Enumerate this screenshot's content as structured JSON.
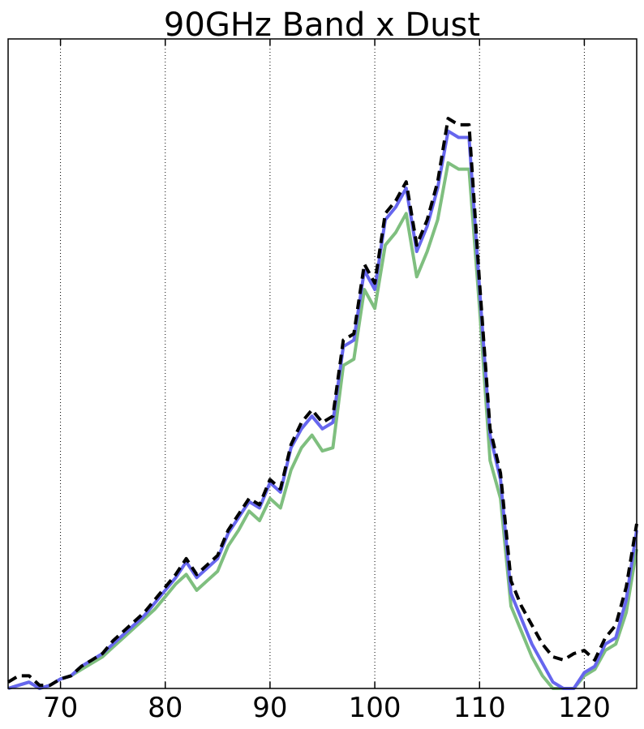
{
  "chart_data": {
    "type": "line",
    "title": "90GHz Band x Dust",
    "xlabel": "",
    "ylabel": "",
    "xlim": [
      65,
      125
    ],
    "ylim": [
      0,
      1
    ],
    "xticks": [
      70,
      80,
      90,
      100,
      110,
      120
    ],
    "xtick_labels": [
      "70",
      "80",
      "90",
      "100",
      "110",
      "120"
    ],
    "grid": "vertical dotted",
    "series": [
      {
        "color": "#7fbf7f",
        "style": "solid",
        "x": [
          65,
          66,
          67,
          68,
          69,
          70,
          71,
          72,
          73,
          74,
          75,
          76,
          77,
          78,
          79,
          80,
          81,
          82,
          83,
          84,
          85,
          86,
          87,
          88,
          89,
          90,
          91,
          92,
          93,
          94,
          95,
          96,
          97,
          98,
          99,
          100,
          101,
          102,
          103,
          104,
          105,
          106,
          107,
          108,
          109,
          110,
          111,
          112,
          113,
          114,
          115,
          116,
          117,
          118,
          119,
          120,
          121,
          122,
          123,
          124,
          125
        ],
        "y": [
          0.0,
          0.005,
          0.01,
          0.0,
          0.005,
          0.015,
          0.02,
          0.03,
          0.04,
          0.05,
          0.065,
          0.08,
          0.095,
          0.11,
          0.125,
          0.145,
          0.165,
          0.18,
          0.155,
          0.17,
          0.185,
          0.225,
          0.25,
          0.28,
          0.265,
          0.3,
          0.285,
          0.345,
          0.38,
          0.4,
          0.375,
          0.38,
          0.51,
          0.52,
          0.63,
          0.6,
          0.7,
          0.72,
          0.75,
          0.65,
          0.69,
          0.74,
          0.83,
          0.82,
          0.82,
          0.6,
          0.36,
          0.3,
          0.13,
          0.09,
          0.05,
          0.02,
          0.0,
          0.0,
          0.0,
          0.02,
          0.03,
          0.06,
          0.07,
          0.12,
          0.22
        ]
      },
      {
        "color": "#6666ee",
        "style": "solid",
        "x": [
          65,
          66,
          67,
          68,
          69,
          70,
          71,
          72,
          73,
          74,
          75,
          76,
          77,
          78,
          79,
          80,
          81,
          82,
          83,
          84,
          85,
          86,
          87,
          88,
          89,
          90,
          91,
          92,
          93,
          94,
          95,
          96,
          97,
          98,
          99,
          100,
          101,
          102,
          103,
          104,
          105,
          106,
          107,
          108,
          109,
          110,
          111,
          112,
          113,
          114,
          115,
          116,
          117,
          118,
          119,
          120,
          121,
          122,
          123,
          124,
          125
        ],
        "y": [
          0.0,
          0.005,
          0.01,
          0.0,
          0.005,
          0.015,
          0.02,
          0.035,
          0.045,
          0.055,
          0.07,
          0.085,
          0.1,
          0.115,
          0.135,
          0.155,
          0.175,
          0.2,
          0.175,
          0.19,
          0.205,
          0.245,
          0.27,
          0.295,
          0.285,
          0.325,
          0.31,
          0.38,
          0.41,
          0.43,
          0.41,
          0.42,
          0.54,
          0.55,
          0.66,
          0.63,
          0.74,
          0.76,
          0.79,
          0.69,
          0.73,
          0.79,
          0.88,
          0.87,
          0.87,
          0.63,
          0.4,
          0.33,
          0.15,
          0.11,
          0.07,
          0.04,
          0.01,
          0.0,
          0.0,
          0.025,
          0.035,
          0.07,
          0.08,
          0.14,
          0.25
        ]
      },
      {
        "color": "#000000",
        "style": "dashed",
        "x": [
          65,
          66,
          67,
          68,
          69,
          70,
          71,
          72,
          73,
          74,
          75,
          76,
          77,
          78,
          79,
          80,
          81,
          82,
          83,
          84,
          85,
          86,
          87,
          88,
          89,
          90,
          91,
          92,
          93,
          94,
          95,
          96,
          97,
          98,
          99,
          100,
          101,
          102,
          103,
          104,
          105,
          106,
          107,
          108,
          109,
          110,
          111,
          112,
          113,
          114,
          115,
          116,
          117,
          118,
          119,
          120,
          121,
          122,
          123,
          124,
          125
        ],
        "y": [
          0.01,
          0.02,
          0.02,
          0.005,
          0.005,
          0.015,
          0.02,
          0.035,
          0.045,
          0.055,
          0.075,
          0.09,
          0.105,
          0.12,
          0.14,
          0.16,
          0.18,
          0.205,
          0.18,
          0.195,
          0.21,
          0.25,
          0.275,
          0.3,
          0.29,
          0.33,
          0.315,
          0.385,
          0.42,
          0.44,
          0.42,
          0.43,
          0.55,
          0.56,
          0.67,
          0.64,
          0.75,
          0.77,
          0.8,
          0.7,
          0.74,
          0.8,
          0.9,
          0.89,
          0.89,
          0.64,
          0.41,
          0.34,
          0.17,
          0.13,
          0.1,
          0.07,
          0.05,
          0.045,
          0.055,
          0.06,
          0.045,
          0.08,
          0.1,
          0.16,
          0.26
        ]
      }
    ]
  }
}
